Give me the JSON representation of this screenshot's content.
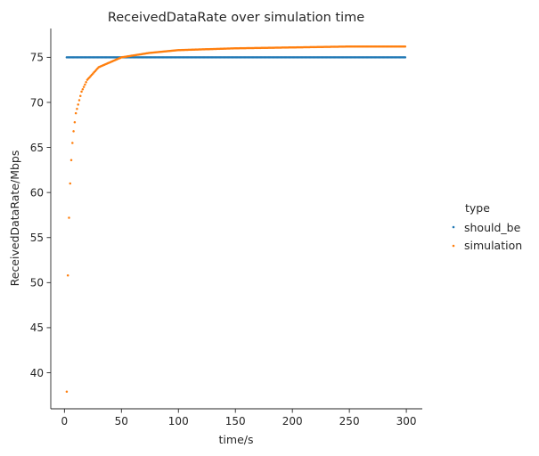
{
  "chart_data": {
    "type": "scatter",
    "title": "ReceivedDataRate over simulation time",
    "xlabel": "time/s",
    "ylabel": "ReceivedDataRate/Mbps",
    "xlim": [
      -12,
      314
    ],
    "ylim": [
      36,
      78.2
    ],
    "xticks": [
      "0",
      "50",
      "100",
      "150",
      "200",
      "250",
      "300"
    ],
    "yticks": [
      "40",
      "45",
      "50",
      "55",
      "60",
      "65",
      "70",
      "75"
    ],
    "grid": false,
    "legend": {
      "title": "type",
      "placement": "right"
    },
    "x_range": [
      2,
      299
    ],
    "x_step": 1,
    "series": [
      {
        "name": "should_be",
        "color": "#1f77b4",
        "rule": "constant",
        "value": 75.0
      },
      {
        "name": "simulation",
        "color": "#ff7f0e",
        "rule": "converging",
        "final_value": 76.2,
        "sample_points": [
          [
            2,
            37.9
          ],
          [
            3,
            50.8
          ],
          [
            4,
            57.2
          ],
          [
            5,
            61.0
          ],
          [
            6,
            63.6
          ],
          [
            7,
            65.5
          ],
          [
            8,
            66.8
          ],
          [
            10,
            68.8
          ],
          [
            15,
            71.2
          ],
          [
            20,
            72.5
          ],
          [
            30,
            73.9
          ],
          [
            50,
            75.0
          ],
          [
            75,
            75.5
          ],
          [
            100,
            75.8
          ],
          [
            150,
            76.0
          ],
          [
            200,
            76.1
          ],
          [
            250,
            76.2
          ],
          [
            299,
            76.2
          ]
        ]
      }
    ]
  }
}
